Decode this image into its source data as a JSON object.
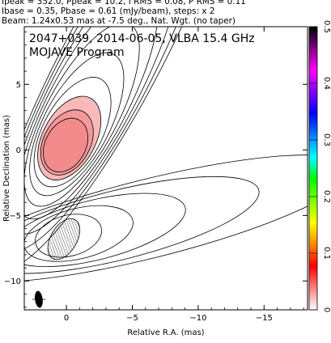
{
  "header": {
    "line1": "Ipeak = 352.0, Ppeak = 10.2, I RMS = 0.08, P RMS = 0.11",
    "line2": "Ibase = 0.35, Pbase = 0.61 (mJy/beam), steps: x 2",
    "line3": "Beam: 1.24x0.53 mas at -7.5 deg., Nat. Wgt. (no taper)"
  },
  "chart_data": {
    "type": "contour",
    "title": "2047+039, 2014-06-05, VLBA 15.4 GHz",
    "subtitle": "MOJAVE Program",
    "xlabel": "Relative R.A. (mas)",
    "ylabel": "Relative Declination (mas)",
    "xlim": [
      3.2,
      -18.3
    ],
    "ylim": [
      -12.2,
      9.4
    ],
    "xticks": [
      0,
      -5,
      -10,
      -15
    ],
    "xtick_labels": [
      "0",
      "−5",
      "−10",
      "−15"
    ],
    "yticks": [
      5,
      0,
      -5,
      -10
    ],
    "ytick_labels": [
      "5",
      "0",
      "−5",
      "−10"
    ],
    "colorbar": {
      "min": 0,
      "max": 0.5,
      "ticks": [
        0,
        0.1,
        0.2,
        0.3,
        0.4,
        0.5
      ],
      "tick_labels": [
        "0",
        "0.1",
        "0.2",
        "0.3",
        "0.4",
        "0.5"
      ],
      "colors": [
        "#ffffff",
        "#ff8080",
        "#ff0000",
        "#ff8800",
        "#ffff00",
        "#80ff00",
        "#00ff00",
        "#00ffff",
        "#0080ff",
        "#0000ff",
        "#8000ff",
        "#ff00ff",
        "#800080",
        "#000000"
      ]
    },
    "total_intensity": {
      "center": [
        0.1,
        0.3
      ],
      "contour_levels_mJy": [
        0.35,
        0.7,
        1.4,
        2.8,
        5.6,
        11.2,
        22.4,
        44.8,
        89.6,
        179.2
      ],
      "jet_direction_pa_deg": -62,
      "shaded_core_color": "#f08080"
    },
    "polarized_intensity": {
      "center": [
        0.1,
        -6.6
      ],
      "contour_levels_mJy": [
        0.61,
        1.22,
        2.44,
        4.88,
        9.76
      ],
      "hatched_knot": [
        0.2,
        -6.8
      ]
    },
    "beam": {
      "center": [
        2.1,
        -11.4
      ],
      "major_mas": 1.24,
      "minor_mas": 0.53,
      "pa_deg": -7.5
    }
  }
}
